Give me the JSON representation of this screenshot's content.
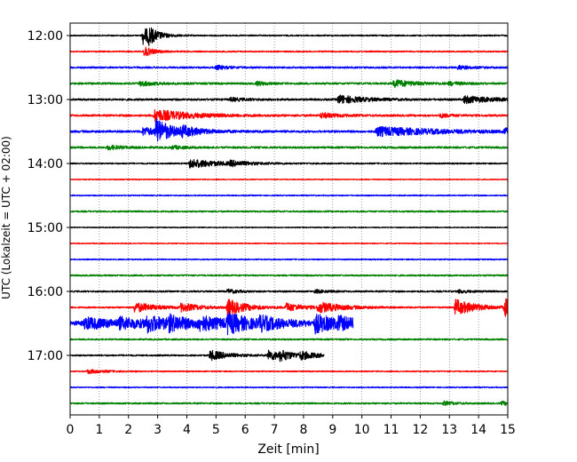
{
  "chart_data": {
    "type": "line",
    "title": "",
    "xlabel": "Zeit  [min]",
    "ylabel": "UTC (Lokalzeit = UTC + 02:00)",
    "xlim": [
      0,
      15
    ],
    "x_ticks": [
      "0",
      "1",
      "2",
      "3",
      "4",
      "5",
      "6",
      "7",
      "8",
      "9",
      "10",
      "11",
      "12",
      "13",
      "14",
      "15"
    ],
    "y_tick_labels": [
      "12:00",
      "13:00",
      "14:00",
      "15:00",
      "16:00",
      "17:00"
    ],
    "grid": "vertical dotted",
    "row_interval_min": 15,
    "rows": [
      {
        "start": "12:00",
        "color": "#000000",
        "end_min": 15,
        "noise": 0.35,
        "events": [
          {
            "t": 2.5,
            "amp": 4.5,
            "dur": 0.35
          },
          {
            "t": 2.7,
            "amp": 2.5,
            "dur": 0.3
          }
        ]
      },
      {
        "start": "12:15",
        "color": "#ff0000",
        "end_min": 15,
        "noise": 0.35,
        "events": [
          {
            "t": 2.55,
            "amp": 2.5,
            "dur": 0.3
          }
        ]
      },
      {
        "start": "12:30",
        "color": "#0000ff",
        "end_min": 15,
        "noise": 0.45,
        "events": [
          {
            "t": 5.0,
            "amp": 1.0,
            "dur": 0.4
          },
          {
            "t": 13.3,
            "amp": 1.0,
            "dur": 0.4
          }
        ]
      },
      {
        "start": "12:45",
        "color": "#008000",
        "end_min": 15,
        "noise": 0.5,
        "events": [
          {
            "t": 2.4,
            "amp": 1.2,
            "dur": 0.5
          },
          {
            "t": 6.4,
            "amp": 1.0,
            "dur": 0.3
          },
          {
            "t": 11.1,
            "amp": 1.8,
            "dur": 0.7
          },
          {
            "t": 13.0,
            "amp": 0.8,
            "dur": 0.4
          }
        ]
      },
      {
        "start": "13:00",
        "color": "#000000",
        "end_min": 15,
        "noise": 0.5,
        "events": [
          {
            "t": 9.2,
            "amp": 2.2,
            "dur": 0.8
          },
          {
            "t": 13.5,
            "amp": 1.8,
            "dur": 0.9
          },
          {
            "t": 5.5,
            "amp": 0.8,
            "dur": 0.5
          }
        ]
      },
      {
        "start": "13:15",
        "color": "#ff0000",
        "end_min": 15,
        "noise": 0.5,
        "events": [
          {
            "t": 2.9,
            "amp": 3.0,
            "dur": 1.2
          },
          {
            "t": 8.6,
            "amp": 1.2,
            "dur": 0.6
          },
          {
            "t": 12.7,
            "amp": 0.9,
            "dur": 0.4
          }
        ]
      },
      {
        "start": "13:30",
        "color": "#0000ff",
        "end_min": 15,
        "noise": 0.55,
        "events": [
          {
            "t": 2.95,
            "amp": 6.0,
            "dur": 0.5
          },
          {
            "t": 2.5,
            "amp": 2.0,
            "dur": 0.6
          },
          {
            "t": 3.8,
            "amp": 2.0,
            "dur": 0.7
          },
          {
            "t": 10.5,
            "amp": 2.3,
            "dur": 2.0
          },
          {
            "t": 14.9,
            "amp": 1.3,
            "dur": 0.4
          }
        ]
      },
      {
        "start": "13:45",
        "color": "#008000",
        "end_min": 15,
        "noise": 0.5,
        "events": [
          {
            "t": 1.3,
            "amp": 1.0,
            "dur": 0.5
          },
          {
            "t": 3.5,
            "amp": 0.8,
            "dur": 0.4
          }
        ]
      },
      {
        "start": "14:00",
        "color": "#000000",
        "end_min": 15,
        "noise": 0.35,
        "events": [
          {
            "t": 4.1,
            "amp": 2.3,
            "dur": 1.0
          },
          {
            "t": 5.5,
            "amp": 1.0,
            "dur": 0.6
          }
        ]
      },
      {
        "start": "14:15",
        "color": "#ff0000",
        "end_min": 15,
        "noise": 0.25,
        "events": []
      },
      {
        "start": "14:30",
        "color": "#0000ff",
        "end_min": 15,
        "noise": 0.3,
        "events": []
      },
      {
        "start": "14:45",
        "color": "#008000",
        "end_min": 15,
        "noise": 0.4,
        "events": []
      },
      {
        "start": "15:00",
        "color": "#000000",
        "end_min": 15,
        "noise": 0.25,
        "events": []
      },
      {
        "start": "15:15",
        "color": "#ff0000",
        "end_min": 15,
        "noise": 0.25,
        "events": []
      },
      {
        "start": "15:30",
        "color": "#0000ff",
        "end_min": 15,
        "noise": 0.3,
        "events": []
      },
      {
        "start": "15:45",
        "color": "#008000",
        "end_min": 15,
        "noise": 0.4,
        "events": []
      },
      {
        "start": "16:00",
        "color": "#000000",
        "end_min": 15,
        "noise": 0.4,
        "events": [
          {
            "t": 5.4,
            "amp": 1.0,
            "dur": 0.4
          },
          {
            "t": 8.4,
            "amp": 0.8,
            "dur": 0.4
          },
          {
            "t": 13.3,
            "amp": 0.8,
            "dur": 0.4
          }
        ]
      },
      {
        "start": "16:15",
        "color": "#ff0000",
        "end_min": 15,
        "noise": 0.4,
        "events": [
          {
            "t": 2.2,
            "amp": 2.5,
            "dur": 0.7
          },
          {
            "t": 3.8,
            "amp": 2.0,
            "dur": 0.6
          },
          {
            "t": 5.4,
            "amp": 4.0,
            "dur": 0.6
          },
          {
            "t": 7.4,
            "amp": 2.0,
            "dur": 0.6
          },
          {
            "t": 8.5,
            "amp": 2.5,
            "dur": 0.8
          },
          {
            "t": 13.2,
            "amp": 4.0,
            "dur": 0.7
          },
          {
            "t": 14.9,
            "amp": 4.5,
            "dur": 0.5
          }
        ]
      },
      {
        "start": "16:30",
        "color": "#0000ff",
        "end_min": 9.7,
        "noise": 1.2,
        "events": [
          {
            "t": 0.5,
            "amp": 2.5,
            "dur": 1.0
          },
          {
            "t": 1.7,
            "amp": 2.0,
            "dur": 0.8
          },
          {
            "t": 2.6,
            "amp": 3.5,
            "dur": 0.7
          },
          {
            "t": 3.4,
            "amp": 2.5,
            "dur": 0.8
          },
          {
            "t": 4.4,
            "amp": 2.5,
            "dur": 1.0
          },
          {
            "t": 5.4,
            "amp": 4.0,
            "dur": 0.7
          },
          {
            "t": 6.5,
            "amp": 2.5,
            "dur": 0.8
          },
          {
            "t": 8.4,
            "amp": 4.0,
            "dur": 0.8
          },
          {
            "t": 9.2,
            "amp": 2.0,
            "dur": 0.5
          }
        ]
      },
      {
        "start": "16:45",
        "color": "#008000",
        "end_min": 15,
        "noise": 0.4,
        "events": []
      },
      {
        "start": "17:00",
        "color": "#000000",
        "end_min": 8.7,
        "noise": 0.4,
        "events": [
          {
            "t": 4.8,
            "amp": 2.5,
            "dur": 0.6
          },
          {
            "t": 6.8,
            "amp": 2.5,
            "dur": 0.5
          },
          {
            "t": 7.2,
            "amp": 1.8,
            "dur": 0.5
          },
          {
            "t": 7.9,
            "amp": 1.5,
            "dur": 0.6
          }
        ]
      },
      {
        "start": "17:15",
        "color": "#ff0000",
        "end_min": 15,
        "noise": 0.3,
        "events": [
          {
            "t": 0.6,
            "amp": 1.0,
            "dur": 0.6
          }
        ]
      },
      {
        "start": "17:30",
        "color": "#0000ff",
        "end_min": 15,
        "noise": 0.3,
        "events": []
      },
      {
        "start": "17:45",
        "color": "#008000",
        "end_min": 15,
        "noise": 0.4,
        "events": [
          {
            "t": 12.8,
            "amp": 0.9,
            "dur": 0.4
          },
          {
            "t": 14.8,
            "amp": 0.8,
            "dur": 0.4
          }
        ]
      }
    ]
  }
}
